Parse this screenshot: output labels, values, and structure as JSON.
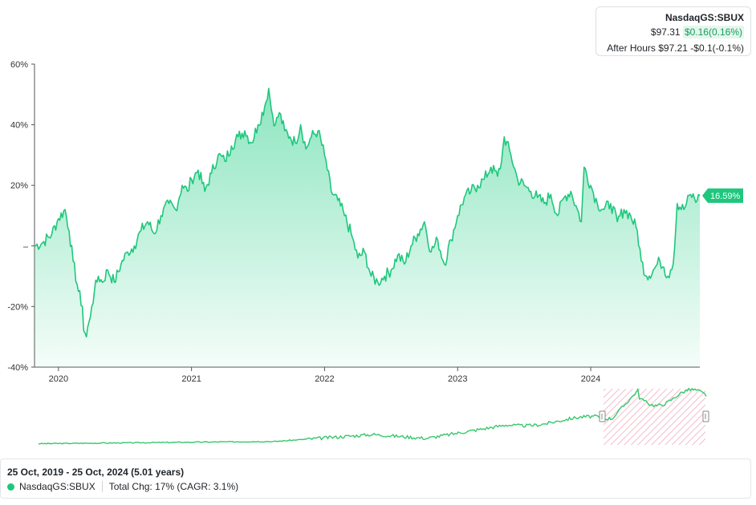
{
  "quote": {
    "symbol": "NasdaqGS:SBUX",
    "price": "$97.31",
    "change": "$0.16(0.16%)",
    "after_hours_label": "After Hours",
    "after_hours_price": "$97.21",
    "after_hours_change": "-$0.1(-0.1%)"
  },
  "footer": {
    "range": "25 Oct, 2019 - 25 Oct, 2024 (5.01 years)",
    "legend_symbol": "NasdaqGS:SBUX",
    "total_change": "Total Chg: 17% (CAGR: 3.1%)"
  },
  "colors": {
    "line": "#1fc77d",
    "fill": "#2fd08c",
    "badge": "#1fc77d",
    "brush_hatch": "#f2b6c6"
  },
  "chart_data": {
    "type": "area",
    "title": "",
    "xlabel": "",
    "ylabel": "",
    "ylim": [
      -40,
      60
    ],
    "yticks": [
      {
        "value": 60,
        "label": "60%"
      },
      {
        "value": 40,
        "label": "40%"
      },
      {
        "value": 20,
        "label": "20%"
      },
      {
        "value": 0,
        "label": "–"
      },
      {
        "value": -20,
        "label": "-20%"
      },
      {
        "value": -40,
        "label": "-40%"
      }
    ],
    "xlim": [
      2019.82,
      2024.82
    ],
    "xticks": [
      {
        "value": 2020.0,
        "label": "2020"
      },
      {
        "value": 2021.0,
        "label": "2021"
      },
      {
        "value": 2022.0,
        "label": "2022"
      },
      {
        "value": 2023.0,
        "label": "2023"
      },
      {
        "value": 2024.0,
        "label": "2024"
      }
    ],
    "last_value_label": "16.59%",
    "series": [
      {
        "x": [
          2019.82,
          2019.88,
          2019.95,
          2020.0,
          2020.05,
          2020.08,
          2020.11,
          2020.15,
          2020.18,
          2020.19,
          2020.21,
          2020.23,
          2020.25,
          2020.27,
          2020.3,
          2020.33,
          2020.37,
          2020.42,
          2020.47,
          2020.52,
          2020.57,
          2020.62,
          2020.67,
          2020.72,
          2020.77,
          2020.83,
          2020.88,
          2020.93,
          2020.97,
          2021.0,
          2021.05,
          2021.1,
          2021.15,
          2021.2,
          2021.25,
          2021.3,
          2021.35,
          2021.4,
          2021.45,
          2021.5,
          2021.55,
          2021.58,
          2021.6,
          2021.63,
          2021.66,
          2021.7,
          2021.74,
          2021.78,
          2021.82,
          2021.86,
          2021.9,
          2021.95,
          2022.0,
          2022.05,
          2022.1,
          2022.15,
          2022.2,
          2022.25,
          2022.3,
          2022.35,
          2022.4,
          2022.45,
          2022.5,
          2022.55,
          2022.6,
          2022.65,
          2022.7,
          2022.75,
          2022.8,
          2022.85,
          2022.9,
          2022.95,
          2023.0,
          2023.05,
          2023.1,
          2023.15,
          2023.2,
          2023.25,
          2023.3,
          2023.33,
          2023.35,
          2023.4,
          2023.45,
          2023.5,
          2023.55,
          2023.6,
          2023.65,
          2023.7,
          2023.75,
          2023.8,
          2023.85,
          2023.9,
          2023.93,
          2023.95,
          2024.0,
          2024.05,
          2024.1,
          2024.15,
          2024.2,
          2024.25,
          2024.3,
          2024.35,
          2024.38,
          2024.42,
          2024.47,
          2024.52,
          2024.55,
          2024.58,
          2024.6,
          2024.62,
          2024.65,
          2024.7,
          2024.75,
          2024.8,
          2024.82
        ],
        "y": [
          0,
          1,
          4,
          9,
          12,
          5,
          -5,
          -15,
          -20,
          -28,
          -30,
          -25,
          -20,
          -15,
          -10,
          -12,
          -8,
          -12,
          -6,
          -2,
          0,
          5,
          8,
          4,
          10,
          14,
          12,
          20,
          18,
          22,
          25,
          18,
          24,
          30,
          28,
          33,
          36,
          38,
          34,
          40,
          46,
          52,
          45,
          40,
          44,
          38,
          36,
          34,
          40,
          32,
          36,
          38,
          30,
          18,
          15,
          10,
          4,
          -4,
          -2,
          -10,
          -12,
          -10,
          -8,
          -3,
          -6,
          0,
          4,
          8,
          -2,
          2,
          -6,
          2,
          10,
          16,
          18,
          20,
          22,
          26,
          23,
          28,
          36,
          30,
          22,
          20,
          18,
          16,
          14,
          17,
          10,
          16,
          18,
          12,
          8,
          26,
          20,
          14,
          12,
          14,
          8,
          12,
          10,
          5,
          -5,
          -10,
          -8,
          -5,
          -7,
          -10,
          -8,
          -6,
          14,
          12,
          17,
          15,
          16.59
        ],
        "name": ""
      }
    ],
    "overview": {
      "brush_start_label": "",
      "brush_end_label": ""
    }
  }
}
